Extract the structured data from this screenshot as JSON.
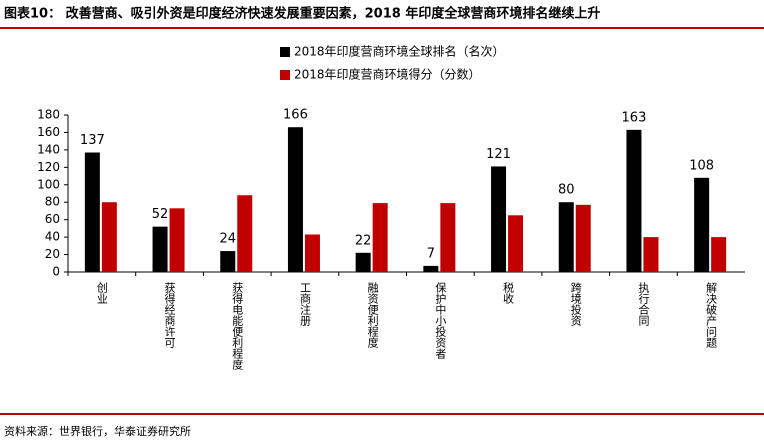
{
  "chart_data": {
    "type": "bar",
    "title": "图表10：  改善营商、吸引外资是印度经济快速发展重要因素，2018 年印度全球营商环境排名继续上升",
    "source": "资料来源：世界银行，华泰证券研究所",
    "categories": [
      "创业",
      "获得经商许可",
      "获得电能便利程度",
      "工商注册",
      "融资便利程度",
      "保护中小投资者",
      "税收",
      "跨境投资",
      "执行合同",
      "解决破产问题"
    ],
    "series": [
      {
        "name": "2018年印度营商环境全球排名（名次）",
        "color": "#000000",
        "values": [
          137,
          52,
          24,
          166,
          22,
          7,
          121,
          80,
          163,
          108
        ],
        "data_labels": true
      },
      {
        "name": "2018年印度营商环境得分（分数）",
        "color": "#c00000",
        "values": [
          80,
          73,
          88,
          43,
          79,
          79,
          65,
          77,
          40,
          40
        ],
        "data_labels": false
      }
    ],
    "ylim": [
      0,
      180
    ],
    "yticks": [
      0,
      20,
      40,
      60,
      80,
      100,
      120,
      140,
      160,
      180
    ],
    "grid": false
  }
}
